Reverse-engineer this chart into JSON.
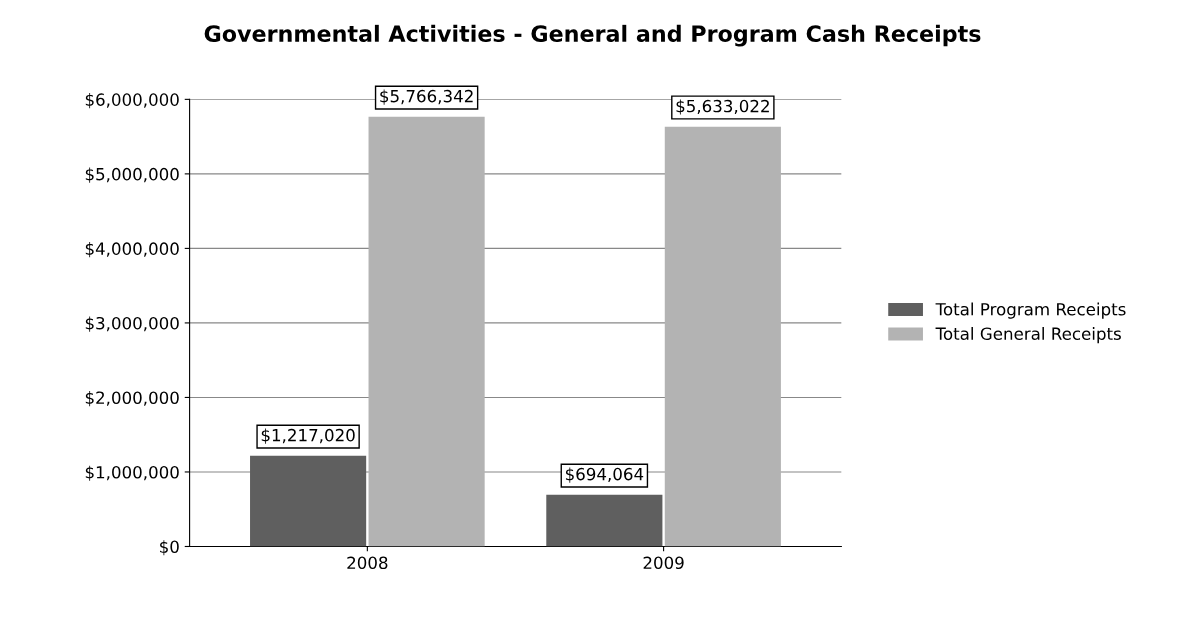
{
  "chart_data": {
    "type": "bar",
    "title": "Governmental Activities - General and Program Cash Receipts",
    "categories": [
      "2008",
      "2009"
    ],
    "series": [
      {
        "name": "Total Program Receipts",
        "color": "#5f5f5f",
        "values": [
          1217020,
          694064
        ],
        "value_labels": [
          "$1,217,020",
          "$694,064"
        ]
      },
      {
        "name": "Total General Receipts",
        "color": "#b3b3b3",
        "values": [
          5766342,
          5633022
        ],
        "value_labels": [
          "$5,766,342",
          "$5,633,022"
        ]
      }
    ],
    "ylim": [
      0,
      6000000
    ],
    "yticks": [
      {
        "value": 0,
        "label": "$0"
      },
      {
        "value": 1000000,
        "label": "$1,000,000"
      },
      {
        "value": 2000000,
        "label": "$2,000,000"
      },
      {
        "value": 3000000,
        "label": "$3,000,000"
      },
      {
        "value": 4000000,
        "label": "$4,000,000"
      },
      {
        "value": 5000000,
        "label": "$5,000,000"
      },
      {
        "value": 6000000,
        "label": "$6,000,000"
      }
    ],
    "grid": "y",
    "legend": "right"
  }
}
